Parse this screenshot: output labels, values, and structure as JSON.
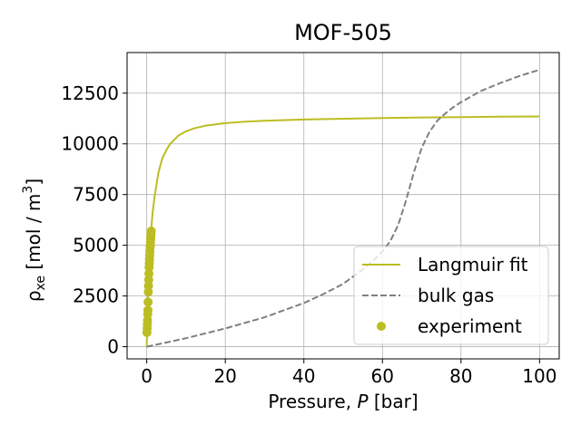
{
  "chart_data": {
    "type": "line",
    "title": "MOF-505",
    "xlabel_text": "Pressure, ",
    "xlabel_var": "P",
    "xlabel_unit": " [bar]",
    "ylabel_text": "ρ",
    "ylabel_sub": "xe",
    "ylabel_unit": " [mol / m",
    "ylabel_sup": "3",
    "ylabel_close": "]",
    "xlim": [
      -5,
      105
    ],
    "ylim": [
      -600,
      14500
    ],
    "xticks": [
      0,
      20,
      40,
      60,
      80,
      100
    ],
    "xtick_labels": [
      "0",
      "20",
      "40",
      "60",
      "80",
      "100"
    ],
    "yticks": [
      0,
      2500,
      5000,
      7500,
      10000,
      12500
    ],
    "ytick_labels": [
      "0",
      "2500",
      "5000",
      "7500",
      "10000",
      "12500"
    ],
    "grid": true,
    "legend_position": "lower-right",
    "series": [
      {
        "name": "Langmuir fit",
        "kind": "line",
        "style": "solid",
        "color": "#bcbd22",
        "x": [
          0,
          0.5,
          1,
          1.5,
          2,
          3,
          4,
          5,
          6,
          8,
          10,
          12,
          15,
          20,
          25,
          30,
          40,
          50,
          60,
          70,
          80,
          90,
          100
        ],
        "y": [
          0,
          3500,
          5500,
          6600,
          7400,
          8600,
          9300,
          9700,
          10000,
          10400,
          10620,
          10760,
          10900,
          11020,
          11090,
          11140,
          11200,
          11240,
          11270,
          11300,
          11320,
          11340,
          11350
        ]
      },
      {
        "name": "bulk gas",
        "kind": "line",
        "style": "dashed",
        "color": "#7f7f7f",
        "x": [
          0,
          10,
          20,
          30,
          40,
          45,
          50,
          55,
          58,
          60,
          62,
          64,
          66,
          68,
          70,
          72,
          74,
          76,
          78,
          80,
          85,
          90,
          95,
          100
        ],
        "y": [
          0,
          420,
          900,
          1450,
          2150,
          2600,
          3100,
          3800,
          4300,
          4700,
          5200,
          6000,
          7200,
          8600,
          9800,
          10600,
          11150,
          11500,
          11800,
          12050,
          12600,
          13000,
          13350,
          13650
        ]
      },
      {
        "name": "experiment",
        "kind": "scatter",
        "color": "#bcbd22",
        "x": [
          0.05,
          0.1,
          0.15,
          0.2,
          0.25,
          0.3,
          0.35,
          0.4,
          0.45,
          0.5,
          0.55,
          0.6,
          0.65,
          0.7,
          0.75,
          0.8,
          0.85,
          0.9,
          0.95,
          1.0,
          1.05,
          1.1,
          1.15
        ],
        "y": [
          700,
          900,
          1100,
          1300,
          1600,
          1800,
          2200,
          2700,
          3000,
          3300,
          3600,
          3900,
          4100,
          4300,
          4500,
          4700,
          4900,
          5000,
          5150,
          5300,
          5450,
          5600,
          5700
        ]
      }
    ]
  }
}
